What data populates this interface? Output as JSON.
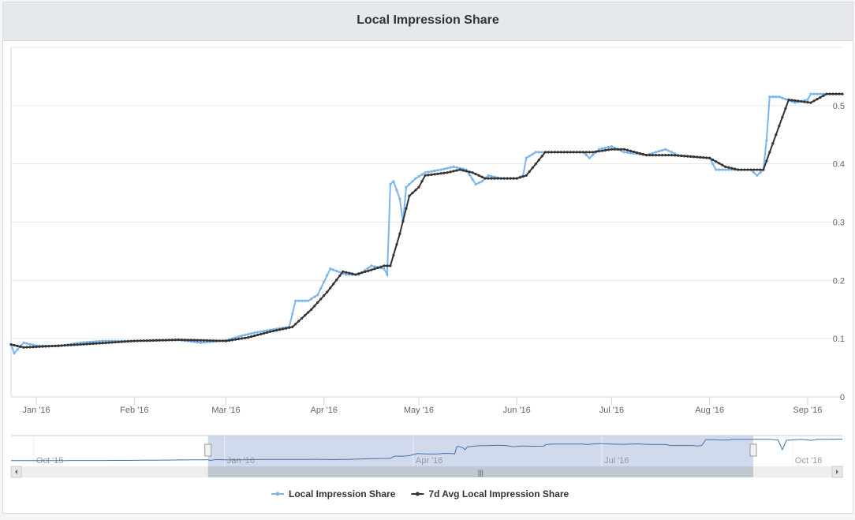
{
  "header": {
    "title": "Local Impression Share"
  },
  "chart_data": {
    "type": "line",
    "title": "Local Impression Share",
    "ylim": [
      0,
      0.6
    ],
    "yticks": [
      "0",
      "0.1",
      "0.2",
      "0.3",
      "0.4",
      "0.5"
    ],
    "xticks": [
      {
        "date": "2016-01-01",
        "label": "Jan '16"
      },
      {
        "date": "2016-02-01",
        "label": "Feb '16"
      },
      {
        "date": "2016-03-01",
        "label": "Mar '16"
      },
      {
        "date": "2016-04-01",
        "label": "Apr '16"
      },
      {
        "date": "2016-05-01",
        "label": "May '16"
      },
      {
        "date": "2016-06-01",
        "label": "Jun '16"
      },
      {
        "date": "2016-07-01",
        "label": "Jul '16"
      },
      {
        "date": "2016-08-01",
        "label": "Aug '16"
      },
      {
        "date": "2016-09-01",
        "label": "Sep '16"
      }
    ],
    "xrange": [
      "2015-12-24",
      "2016-09-12"
    ],
    "legend_position": "bottom",
    "series": [
      {
        "name": "Local Impression Share",
        "color": "#7cb5ec",
        "points": [
          [
            "2015-12-24",
            0.09
          ],
          [
            "2015-12-25",
            0.075
          ],
          [
            "2015-12-28",
            0.093
          ],
          [
            "2016-01-01",
            0.088
          ],
          [
            "2016-01-08",
            0.087
          ],
          [
            "2016-01-15",
            0.093
          ],
          [
            "2016-01-22",
            0.096
          ],
          [
            "2016-02-01",
            0.096
          ],
          [
            "2016-02-15",
            0.098
          ],
          [
            "2016-02-22",
            0.093
          ],
          [
            "2016-03-01",
            0.097
          ],
          [
            "2016-03-06",
            0.105
          ],
          [
            "2016-03-10",
            0.11
          ],
          [
            "2016-03-15",
            0.115
          ],
          [
            "2016-03-21",
            0.12
          ],
          [
            "2016-03-23",
            0.165
          ],
          [
            "2016-03-27",
            0.165
          ],
          [
            "2016-03-30",
            0.175
          ],
          [
            "2016-04-03",
            0.22
          ],
          [
            "2016-04-08",
            0.21
          ],
          [
            "2016-04-12",
            0.21
          ],
          [
            "2016-04-16",
            0.225
          ],
          [
            "2016-04-20",
            0.22
          ],
          [
            "2016-04-21",
            0.21
          ],
          [
            "2016-04-22",
            0.365
          ],
          [
            "2016-04-23",
            0.37
          ],
          [
            "2016-04-25",
            0.34
          ],
          [
            "2016-04-26",
            0.3
          ],
          [
            "2016-04-27",
            0.36
          ],
          [
            "2016-04-30",
            0.375
          ],
          [
            "2016-05-03",
            0.385
          ],
          [
            "2016-05-08",
            0.39
          ],
          [
            "2016-05-12",
            0.395
          ],
          [
            "2016-05-16",
            0.39
          ],
          [
            "2016-05-19",
            0.365
          ],
          [
            "2016-05-21",
            0.37
          ],
          [
            "2016-05-23",
            0.38
          ],
          [
            "2016-05-27",
            0.375
          ],
          [
            "2016-06-01",
            0.375
          ],
          [
            "2016-06-03",
            0.38
          ],
          [
            "2016-06-04",
            0.41
          ],
          [
            "2016-06-07",
            0.42
          ],
          [
            "2016-06-15",
            0.42
          ],
          [
            "2016-06-22",
            0.42
          ],
          [
            "2016-06-24",
            0.41
          ],
          [
            "2016-06-27",
            0.425
          ],
          [
            "2016-07-01",
            0.43
          ],
          [
            "2016-07-05",
            0.42
          ],
          [
            "2016-07-12",
            0.415
          ],
          [
            "2016-07-18",
            0.425
          ],
          [
            "2016-07-22",
            0.415
          ],
          [
            "2016-08-01",
            0.41
          ],
          [
            "2016-08-03",
            0.39
          ],
          [
            "2016-08-08",
            0.39
          ],
          [
            "2016-08-14",
            0.39
          ],
          [
            "2016-08-16",
            0.38
          ],
          [
            "2016-08-18",
            0.39
          ],
          [
            "2016-08-19",
            0.44
          ],
          [
            "2016-08-20",
            0.515
          ],
          [
            "2016-08-23",
            0.515
          ],
          [
            "2016-08-28",
            0.505
          ],
          [
            "2016-09-01",
            0.51
          ],
          [
            "2016-09-02",
            0.52
          ],
          [
            "2016-09-06",
            0.52
          ],
          [
            "2016-09-12",
            0.52
          ]
        ]
      },
      {
        "name": "7d Avg Local Impression Share",
        "color": "#333333",
        "points": [
          [
            "2015-12-24",
            0.09
          ],
          [
            "2015-12-28",
            0.085
          ],
          [
            "2016-01-05",
            0.087
          ],
          [
            "2016-01-15",
            0.09
          ],
          [
            "2016-02-01",
            0.096
          ],
          [
            "2016-02-15",
            0.098
          ],
          [
            "2016-03-01",
            0.096
          ],
          [
            "2016-03-08",
            0.102
          ],
          [
            "2016-03-15",
            0.112
          ],
          [
            "2016-03-22",
            0.12
          ],
          [
            "2016-03-28",
            0.15
          ],
          [
            "2016-04-02",
            0.18
          ],
          [
            "2016-04-07",
            0.215
          ],
          [
            "2016-04-11",
            0.21
          ],
          [
            "2016-04-16",
            0.218
          ],
          [
            "2016-04-20",
            0.225
          ],
          [
            "2016-04-22",
            0.225
          ],
          [
            "2016-04-25",
            0.28
          ],
          [
            "2016-04-28",
            0.345
          ],
          [
            "2016-05-01",
            0.36
          ],
          [
            "2016-05-03",
            0.38
          ],
          [
            "2016-05-10",
            0.385
          ],
          [
            "2016-05-14",
            0.39
          ],
          [
            "2016-05-18",
            0.385
          ],
          [
            "2016-05-22",
            0.375
          ],
          [
            "2016-06-01",
            0.375
          ],
          [
            "2016-06-04",
            0.38
          ],
          [
            "2016-06-10",
            0.42
          ],
          [
            "2016-06-25",
            0.42
          ],
          [
            "2016-07-01",
            0.425
          ],
          [
            "2016-07-05",
            0.425
          ],
          [
            "2016-07-12",
            0.415
          ],
          [
            "2016-07-20",
            0.415
          ],
          [
            "2016-08-01",
            0.41
          ],
          [
            "2016-08-06",
            0.395
          ],
          [
            "2016-08-10",
            0.39
          ],
          [
            "2016-08-18",
            0.39
          ],
          [
            "2016-08-22",
            0.45
          ],
          [
            "2016-08-26",
            0.51
          ],
          [
            "2016-09-02",
            0.505
          ],
          [
            "2016-09-07",
            0.52
          ],
          [
            "2016-09-12",
            0.52
          ]
        ]
      }
    ],
    "navigator": {
      "range": [
        "2015-09-20",
        "2016-10-25"
      ],
      "selected": [
        "2015-12-24",
        "2016-09-12"
      ],
      "xticks": [
        {
          "date": "2015-10-01",
          "label": "Oct '15"
        },
        {
          "date": "2016-01-01",
          "label": "Jan '16"
        },
        {
          "date": "2016-04-01",
          "label": "Apr '16"
        },
        {
          "date": "2016-07-01",
          "label": "Jul '16"
        },
        {
          "date": "2016-10-01",
          "label": "Oct '16"
        }
      ],
      "extra_points": [
        [
          "2015-09-20",
          0.07
        ],
        [
          "2015-11-15",
          0.075
        ],
        [
          "2015-12-20",
          0.088
        ],
        [
          "2016-09-20",
          0.52
        ],
        [
          "2016-09-24",
          0.51
        ],
        [
          "2016-09-26",
          0.3
        ],
        [
          "2016-09-28",
          0.5
        ],
        [
          "2016-10-05",
          0.52
        ],
        [
          "2016-10-10",
          0.5
        ],
        [
          "2016-10-13",
          0.52
        ],
        [
          "2016-10-25",
          0.525
        ]
      ]
    }
  }
}
